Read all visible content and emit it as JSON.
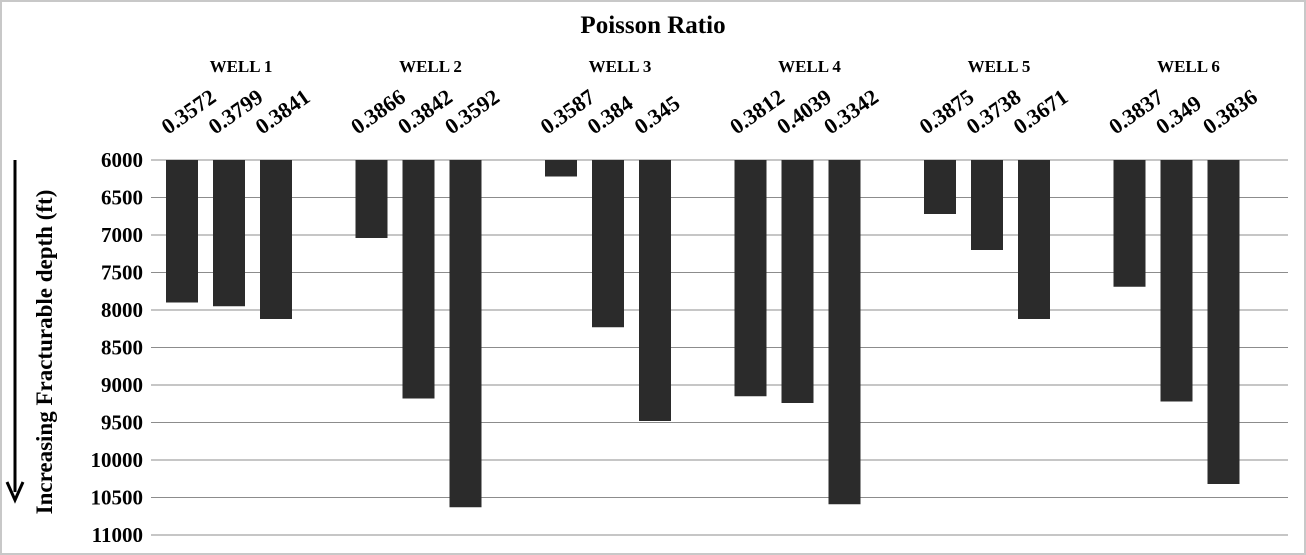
{
  "chart_data": {
    "type": "bar",
    "title": "Poisson Ratio",
    "ylabel": "Increasing Fracturable depth (ft)",
    "ylim": [
      6000,
      11000
    ],
    "y_inverted": true,
    "yticks": [
      6000,
      6500,
      7000,
      7500,
      8000,
      8500,
      9000,
      9500,
      10000,
      10500,
      11000
    ],
    "grid": true,
    "bar_color": "#2b2b2b",
    "groups": [
      {
        "name": "WELL 1",
        "labels": [
          "0.3572",
          "0.3799",
          "0.3841"
        ],
        "values": [
          7900,
          7950,
          8120
        ]
      },
      {
        "name": "WELL 2",
        "labels": [
          "0.3866",
          "0.3842",
          "0.3592"
        ],
        "values": [
          7040,
          9180,
          10630
        ]
      },
      {
        "name": "WELL 3",
        "labels": [
          "0.3587",
          "0.384",
          "0.345"
        ],
        "values": [
          6220,
          8230,
          9480
        ]
      },
      {
        "name": "WELL 4",
        "labels": [
          "0.3812",
          "0.4039",
          "0.3342"
        ],
        "values": [
          9150,
          9240,
          10590
        ]
      },
      {
        "name": "WELL 5",
        "labels": [
          "0.3875",
          "0.3738",
          "0.3671"
        ],
        "values": [
          6720,
          7200,
          8120
        ]
      },
      {
        "name": "WELL 6",
        "labels": [
          "0.3837",
          "0.349",
          "0.3836"
        ],
        "values": [
          7690,
          9220,
          10320
        ]
      }
    ]
  }
}
